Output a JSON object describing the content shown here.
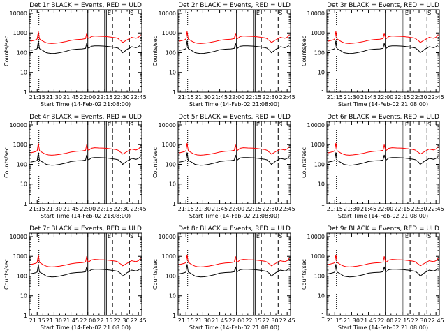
{
  "chart_data": {
    "type": "line",
    "panels": [
      {
        "title": "Det 1r BLACK = Events, RED = ULD",
        "xlabel": "Start Time (14-Feb-02 21:08:00)",
        "ylabel": "Counts/sec"
      },
      {
        "title": "Det 2r BLACK = Events, RED = ULD",
        "xlabel": "Start Time (14-Feb-02 21:08:00)",
        "ylabel": "Counts/sec"
      },
      {
        "title": "Det 3r BLACK = Events, RED = ULD",
        "xlabel": "Start Time (14-Feb-02 21:08:00)",
        "ylabel": "Counts/sec"
      },
      {
        "title": "Det 4r BLACK = Events, RED = ULD",
        "xlabel": "Start Time (14-Feb-02 21:08:00)",
        "ylabel": "Counts/sec"
      },
      {
        "title": "Det 5r BLACK = Events, RED = ULD",
        "xlabel": "Start Time (14-Feb-02 21:08:00)",
        "ylabel": "Counts/sec"
      },
      {
        "title": "Det 6r BLACK = Events, RED = ULD",
        "xlabel": "Start Time (14-Feb-02 21:08:00)",
        "ylabel": "Counts/sec"
      },
      {
        "title": "Det 7r BLACK = Events, RED = ULD",
        "xlabel": "Start Time (14-Feb-02 21:08:00)",
        "ylabel": "Counts/sec"
      },
      {
        "title": "Det 8r BLACK = Events, RED = ULD",
        "xlabel": "Start Time (14-Feb-02 21:08:00)",
        "ylabel": "Counts/sec"
      },
      {
        "title": "Det 9r BLACK = Events, RED = ULD",
        "xlabel": "Start Time (14-Feb-02 21:08:00)",
        "ylabel": "Counts/sec"
      }
    ],
    "x_tick_labels": [
      "21:15",
      "21:30",
      "21:45",
      "22:00",
      "22:15",
      "22:30",
      "22:45"
    ],
    "x_tick_minutes": [
      15,
      30,
      45,
      60,
      75,
      90,
      105
    ],
    "xlim_minutes": [
      8,
      108
    ],
    "y_tick_labels": [
      "1",
      "10",
      "100",
      "1000",
      "10000"
    ],
    "y_tick_values": [
      1,
      10,
      100,
      1000,
      10000
    ],
    "ylim": [
      1,
      15000
    ],
    "y_scale": "log",
    "colors": {
      "events": "#000000",
      "uld": "#ff0000"
    },
    "series_labels": {
      "events": "Events",
      "uld": "ULD"
    },
    "series_x_minutes": [
      9,
      12,
      14,
      15,
      16,
      17,
      19,
      21,
      23,
      25,
      28,
      31,
      35,
      40,
      45,
      50,
      55,
      58,
      59,
      60,
      61,
      63,
      66,
      70,
      75,
      80,
      85,
      87,
      88,
      89,
      90,
      91,
      92,
      93,
      95,
      97,
      99,
      101,
      103,
      105,
      107
    ],
    "events_values": [
      130,
      140,
      150,
      160,
      400,
      160,
      140,
      120,
      100,
      95,
      90,
      92,
      100,
      115,
      140,
      150,
      155,
      165,
      300,
      180,
      170,
      210,
      220,
      220,
      215,
      200,
      180,
      170,
      150,
      140,
      120,
      100,
      110,
      120,
      150,
      170,
      200,
      190,
      180,
      200,
      250
    ],
    "uld_values": [
      380,
      420,
      450,
      500,
      1200,
      500,
      420,
      360,
      320,
      300,
      290,
      300,
      320,
      360,
      420,
      460,
      480,
      520,
      1000,
      560,
      520,
      650,
      700,
      680,
      660,
      620,
      560,
      520,
      450,
      420,
      380,
      330,
      350,
      380,
      450,
      520,
      600,
      560,
      540,
      600,
      800
    ],
    "solid_vlines_minutes": [
      60,
      75,
      76.5
    ],
    "dashed_vlines_minutes": [
      82,
      97
    ],
    "dotted_vlines_minutes": [
      16.5
    ],
    "overlay_markers": [
      "E",
      "S"
    ]
  }
}
